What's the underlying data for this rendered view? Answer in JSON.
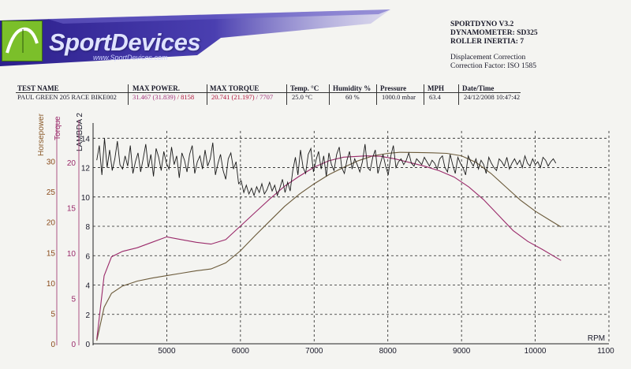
{
  "header": {
    "logo_text": "SportDevices",
    "logo_url": "www.SportDevices.com",
    "software": "SPORTDYNO V3.2",
    "dynamometer": "DYNAMOMETER: SD325",
    "roller_inertia": "ROLLER INERTIA:  7",
    "correction": "Displacement Correction",
    "correction_factor": "Correction Factor: ISO 1585",
    "colors": {
      "banner": "#2c1f8c",
      "logo_box": "#7bbf2a"
    }
  },
  "info_table": {
    "headers": [
      "TEST NAME",
      "MAX POWER.",
      "MAX TORQUE",
      "Temp. °C",
      "Humidity %",
      "Pressure",
      "MPH",
      "Date/Time"
    ],
    "test_name": "PAUL GREEN 205 RACE BIKE002",
    "max_power_a": "31.467",
    "max_power_b": "(31.839)",
    "max_power_rpm": "/ 8158",
    "max_torque_a": "20.741",
    "max_torque_b": "(21.197)",
    "max_torque_rpm": "/ 7707",
    "temp": "25.0 °C",
    "humidity": "60 %",
    "pressure": "1000.0 mbar",
    "mph": "63.4",
    "datetime": "24/12/2008 10:47:42"
  },
  "chart_data": {
    "type": "line",
    "xlabel": "RPM",
    "xlim": [
      4000,
      11000
    ],
    "x_ticks": [
      5000,
      6000,
      7000,
      8000,
      9000,
      10000
    ],
    "x_tick_last": "1100",
    "axes": {
      "horsepower": {
        "label": "Horsepower",
        "ticks": [
          "0",
          "5",
          "10",
          "15",
          "20",
          "25",
          "30"
        ],
        "range": [
          0,
          35
        ]
      },
      "torque": {
        "label": "Torque",
        "ticks": [
          "0",
          "5",
          "10",
          "15",
          "20"
        ],
        "range": [
          0,
          23.5
        ]
      },
      "lambda": {
        "label": "LAMBDA 2",
        "ticks": [
          "0",
          "2",
          "4",
          "6",
          "8",
          "10",
          "12",
          "14"
        ],
        "range": [
          0,
          14.5
        ]
      }
    },
    "series": [
      {
        "key": "power",
        "color": "#6b5a3a",
        "axis": "horsepower",
        "x": [
          4050,
          4150,
          4250,
          4400,
          4600,
          4800,
          5000,
          5200,
          5400,
          5600,
          5800,
          6000,
          6200,
          6400,
          6600,
          6800,
          7000,
          7200,
          7400,
          7600,
          7800,
          8000,
          8158,
          8400,
          8600,
          8800,
          9000,
          9200,
          9400,
          9600,
          9800,
          10000,
          10200,
          10350
        ],
        "values": [
          0.5,
          6,
          8.3,
          9.5,
          10.3,
          10.8,
          11.2,
          11.6,
          12.0,
          12.3,
          13.3,
          15.3,
          17.8,
          20.2,
          22.6,
          24.6,
          26.3,
          27.8,
          29.0,
          30.1,
          30.9,
          31.3,
          31.47,
          31.45,
          31.4,
          31.3,
          30.9,
          29.8,
          28.0,
          25.8,
          23.6,
          21.8,
          20.3,
          19.2
        ]
      },
      {
        "key": "torque",
        "color": "#9a2a6a",
        "axis": "torque",
        "x": [
          4050,
          4150,
          4250,
          4400,
          4600,
          4800,
          5000,
          5200,
          5400,
          5600,
          5800,
          6000,
          6200,
          6400,
          6600,
          6800,
          7000,
          7200,
          7400,
          7707,
          7900,
          8100,
          8300,
          8500,
          8700,
          8900,
          9100,
          9300,
          9500,
          9700,
          9900,
          10100,
          10350
        ],
        "values": [
          0.5,
          7.5,
          9.6,
          10.2,
          10.6,
          11.2,
          11.8,
          11.5,
          11.2,
          11.0,
          11.5,
          13.0,
          14.5,
          16.0,
          17.4,
          18.5,
          19.5,
          20.2,
          20.6,
          20.74,
          20.7,
          20.4,
          20.0,
          19.6,
          19.1,
          18.4,
          17.3,
          15.9,
          14.2,
          12.5,
          11.3,
          10.4,
          9.2
        ]
      }
    ],
    "lambda": {
      "color": "#1a1a1a",
      "axis": "lambda",
      "x_start": 4050,
      "x_step": 35,
      "values": [
        12.5,
        13.5,
        11.5,
        14.0,
        12.0,
        13.2,
        11.8,
        12.6,
        13.8,
        12.2,
        11.9,
        12.8,
        12.1,
        13.5,
        11.6,
        12.4,
        13.0,
        11.7,
        12.6,
        13.6,
        12.0,
        12.9,
        11.4,
        13.3,
        12.7,
        11.8,
        13.1,
        12.3,
        11.9,
        13.4,
        12.2,
        12.8,
        11.3,
        13.0,
        12.5,
        11.7,
        12.9,
        13.5,
        11.6,
        12.4,
        12.8,
        11.9,
        13.2,
        12.1,
        12.6,
        13.7,
        11.5,
        12.3,
        12.9,
        11.8,
        11.2,
        12.6,
        13.0,
        11.9,
        12.4,
        10.9,
        11.1,
        10.3,
        10.8,
        10.2,
        10.6,
        10.1,
        10.7,
        10.3,
        10.9,
        10.2,
        10.5,
        11.0,
        10.4,
        10.8,
        10.1,
        10.6,
        11.2,
        10.3,
        11.0,
        10.4,
        11.8,
        12.7,
        11.5,
        13.2,
        12.0,
        11.6,
        12.9,
        13.3,
        11.7,
        12.5,
        13.1,
        11.9,
        12.8,
        11.4,
        13.0,
        12.2,
        11.8,
        12.9,
        13.4,
        12.0,
        11.6,
        12.5,
        13.1,
        11.9,
        12.6,
        12.2,
        11.7,
        12.4,
        13.6,
        12.0,
        11.8,
        12.7,
        13.2,
        11.6,
        12.3,
        12.9,
        12.1,
        11.5,
        12.8,
        13.5,
        12.0,
        12.4,
        12.6,
        12.2,
        12.5,
        13.0,
        12.3,
        12.1,
        12.6,
        12.4,
        12.2,
        12.7,
        12.4,
        12.1,
        12.5,
        12.3,
        11.9,
        12.6,
        12.8,
        12.0,
        11.7,
        12.9,
        12.2,
        11.6,
        12.7,
        12.3,
        12.0,
        11.5,
        12.8,
        12.4,
        12.1,
        12.6,
        11.9,
        12.5,
        12.2,
        11.6,
        12.7,
        12.3,
        12.0,
        11.8,
        12.6,
        12.4,
        12.1,
        12.7,
        11.9,
        12.3,
        12.6,
        12.2,
        12.5,
        12.0,
        12.8,
        12.3,
        12.1,
        12.6,
        12.2,
        12.4,
        12.0,
        12.7,
        12.5,
        12.1,
        12.4,
        12.6,
        12.3
      ]
    },
    "grid": true
  }
}
